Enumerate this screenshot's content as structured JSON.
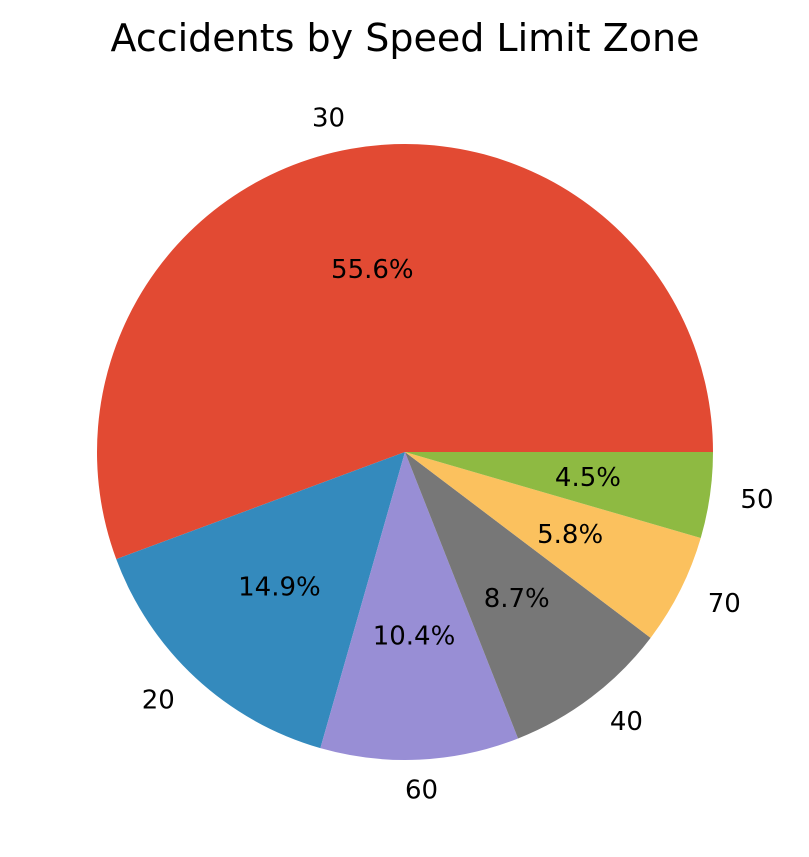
{
  "chart_data": {
    "type": "pie",
    "title": "Accidents by Speed Limit Zone",
    "start_angle_deg": 0,
    "direction": "counterclockwise",
    "slices": [
      {
        "label": "30",
        "value": 55.6,
        "pct_text": "55.6%",
        "color": "#E24A33"
      },
      {
        "label": "20",
        "value": 14.9,
        "pct_text": "14.9%",
        "color": "#348ABD"
      },
      {
        "label": "60",
        "value": 10.4,
        "pct_text": "10.4%",
        "color": "#988ED5"
      },
      {
        "label": "40",
        "value": 8.7,
        "pct_text": "8.7%",
        "color": "#777777"
      },
      {
        "label": "70",
        "value": 5.8,
        "pct_text": "5.8%",
        "color": "#FBC15E"
      },
      {
        "label": "50",
        "value": 4.5,
        "pct_text": "4.5%",
        "color": "#8EBA42"
      }
    ]
  }
}
